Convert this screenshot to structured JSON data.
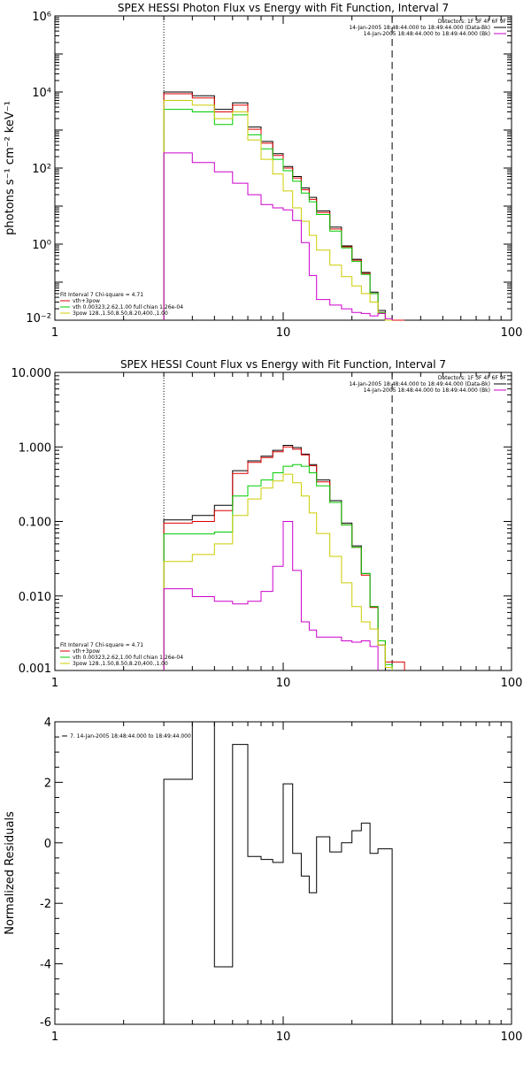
{
  "chart_data": [
    {
      "id": "photon",
      "type": "line",
      "title": "SPEX HESSI Photon Flux vs Energy with Fit Function, Interval 7",
      "ylabel": "photons s⁻¹ cm⁻² keV⁻¹",
      "xscale": "log",
      "yscale": "log",
      "xlim": [
        1,
        100
      ],
      "ylim": [
        0.01,
        1000000
      ],
      "xticks": [
        1,
        10,
        100
      ],
      "xtick_labels": [
        "1",
        "10",
        "100"
      ],
      "yticks": [
        0.01,
        1,
        100,
        10000,
        1000000
      ],
      "ytick_labels": [
        "10⁻²",
        "10⁰",
        "10²",
        "10⁴",
        "10⁶"
      ],
      "legend_right": [
        "Detectors: 1F 3F 4F 6F 9F",
        "14-Jan-2005 18:48:44.000 to 18:49:44.000 (Data-Bk)",
        "14-Jan-2005 18:48:44.000 to 18:49:44.000 (Bk)"
      ],
      "legend_left": [
        "Fit Interval 7   Chi-square = 4.71",
        "vth+3pow",
        "vth 0.00323,2.62,1.00  full chian 1.26e-04",
        "3pow 128.,1.50,8.50,8.20,400.,1.00"
      ],
      "vlines": [
        {
          "x": 3,
          "style": "dotted"
        },
        {
          "x": 30,
          "style": "dashed"
        }
      ],
      "edges": [
        3,
        4,
        5,
        6,
        7,
        8,
        9,
        10,
        11,
        12,
        13,
        14,
        16,
        18,
        20,
        22,
        24,
        26,
        28,
        30,
        32,
        34
      ],
      "series": [
        {
          "color": "#000000",
          "values": [
            10000,
            8000,
            3500,
            5200,
            1200,
            500,
            240,
            110,
            60,
            30,
            17,
            7.5,
            2.8,
            0.9,
            0.4,
            0.18,
            0.055,
            0.018,
            0.008,
            null,
            null
          ]
        },
        {
          "color": "#dd0000",
          "values": [
            9000,
            7000,
            3000,
            4500,
            1050,
            450,
            215,
            100,
            55,
            27,
            15,
            6.8,
            2.5,
            0.85,
            0.38,
            0.17,
            0.05,
            0.016,
            0.007,
            0.007,
            0.007
          ]
        },
        {
          "color": "#00cc00",
          "values": [
            3500,
            3000,
            1400,
            2500,
            750,
            320,
            170,
            85,
            45,
            22,
            13,
            6,
            2.2,
            0.8,
            0.35,
            0.16,
            0.05,
            0.016,
            0.008,
            null,
            null
          ]
        },
        {
          "color": "#cccc00",
          "values": [
            6000,
            4500,
            2000,
            3000,
            550,
            170,
            70,
            25,
            9,
            4,
            1.7,
            0.7,
            0.28,
            0.14,
            0.08,
            0.05,
            0.03,
            0.015,
            0.008,
            null,
            null
          ]
        },
        {
          "color": "#cc00cc",
          "values": [
            250,
            140,
            80,
            40,
            20,
            11,
            9,
            8,
            4.2,
            1.1,
            0.15,
            0.035,
            0.025,
            0.02,
            0.016,
            0.015,
            0.013,
            0.015,
            0.011,
            null,
            null
          ]
        }
      ]
    },
    {
      "id": "count",
      "type": "line",
      "title": "SPEX HESSI Count Flux vs Energy with Fit Function, Interval 7",
      "ylabel": "",
      "xscale": "log",
      "yscale": "log",
      "xlim": [
        1,
        100
      ],
      "ylim": [
        0.001,
        10
      ],
      "xticks": [
        1,
        10,
        100
      ],
      "xtick_labels": [
        "1",
        "10",
        "100"
      ],
      "yticks": [
        0.001,
        0.01,
        0.1,
        1,
        10
      ],
      "ytick_labels": [
        "0.001",
        "0.010",
        "0.100",
        "1.000",
        "10.000"
      ],
      "legend_right": [
        "Detectors: 1F 3F 4F 6F 9F",
        "14-Jan-2005 18:48:44.000 to 18:49:44.000 (Data-Bk)",
        "14-Jan-2005 18:48:44.000 to 18:49:44.000 (Bk)"
      ],
      "legend_left": [
        "Fit Interval 7   Chi-square = 4.71",
        "vth+3pow",
        "vth 0.00323,2.62,1.00  full chian 1.26e-04",
        "3pow 128.,1.50,8.50,8.20,400.,1.00"
      ],
      "vlines": [
        {
          "x": 3,
          "style": "dotted"
        },
        {
          "x": 30,
          "style": "dashed"
        }
      ],
      "edges": [
        3,
        4,
        5,
        6,
        7,
        8,
        9,
        10,
        11,
        12,
        13,
        14,
        16,
        18,
        20,
        22,
        24,
        26,
        28,
        30,
        32,
        34
      ],
      "series": [
        {
          "color": "#000000",
          "values": [
            0.105,
            0.12,
            0.165,
            0.48,
            0.65,
            0.75,
            0.9,
            1.05,
            0.98,
            0.8,
            0.58,
            0.36,
            0.19,
            0.095,
            0.047,
            0.02,
            0.0072,
            0.0022,
            null,
            null,
            null
          ]
        },
        {
          "color": "#dd0000",
          "values": [
            0.095,
            0.1,
            0.14,
            0.44,
            0.62,
            0.72,
            0.86,
            1.0,
            0.93,
            0.78,
            0.56,
            0.34,
            0.18,
            0.09,
            0.045,
            0.019,
            0.007,
            0.0025,
            0.0013,
            0.0013,
            0.0013
          ]
        },
        {
          "color": "#00cc00",
          "values": [
            0.068,
            0.068,
            0.072,
            0.22,
            0.3,
            0.36,
            0.45,
            0.55,
            0.58,
            0.55,
            0.45,
            0.3,
            0.18,
            0.09,
            0.045,
            0.02,
            0.0072,
            0.0025,
            0.0012,
            null,
            null
          ]
        },
        {
          "color": "#cccc00",
          "values": [
            0.029,
            0.036,
            0.05,
            0.12,
            0.2,
            0.28,
            0.35,
            0.43,
            0.33,
            0.22,
            0.13,
            0.069,
            0.034,
            0.015,
            0.0072,
            0.0045,
            0.0036,
            0.0022,
            0.0011,
            null,
            null
          ]
        },
        {
          "color": "#cc00cc",
          "values": [
            0.0125,
            0.0098,
            0.0085,
            0.0078,
            0.0085,
            0.0115,
            0.025,
            0.1,
            0.022,
            0.0045,
            0.0035,
            0.0028,
            0.0028,
            0.0025,
            0.0024,
            0.0025,
            0.0021,
            null,
            null,
            null,
            null
          ]
        }
      ]
    },
    {
      "id": "residuals",
      "type": "line",
      "title": "",
      "ylabel": "Normalized Residuals",
      "xscale": "log",
      "yscale": "linear",
      "xlim": [
        1,
        100
      ],
      "ylim": [
        -6,
        4
      ],
      "xticks": [
        1,
        10,
        100
      ],
      "xtick_labels": [
        "1",
        "10",
        "100"
      ],
      "yticks": [
        -6,
        -4,
        -2,
        0,
        2,
        4
      ],
      "ytick_labels": [
        "-6",
        "-4",
        "-2",
        "0",
        "2",
        "4"
      ],
      "legend_left": [
        "7. 14-Jan-2005 18:48:44.000 to 18:49:44.000"
      ],
      "edges": [
        3,
        4,
        5,
        6,
        7,
        8,
        9,
        10,
        11,
        12,
        13,
        14,
        16,
        18,
        20,
        22,
        24,
        26,
        28,
        30
      ],
      "series": [
        {
          "color": "#000000",
          "values": [
            2.1,
            4.0,
            -4.1,
            3.25,
            -0.45,
            -0.55,
            -0.65,
            1.95,
            -0.35,
            -1.1,
            -1.65,
            0.2,
            -0.3,
            0.0,
            0.4,
            0.65,
            -0.35,
            -0.2,
            -0.2
          ]
        }
      ]
    }
  ]
}
